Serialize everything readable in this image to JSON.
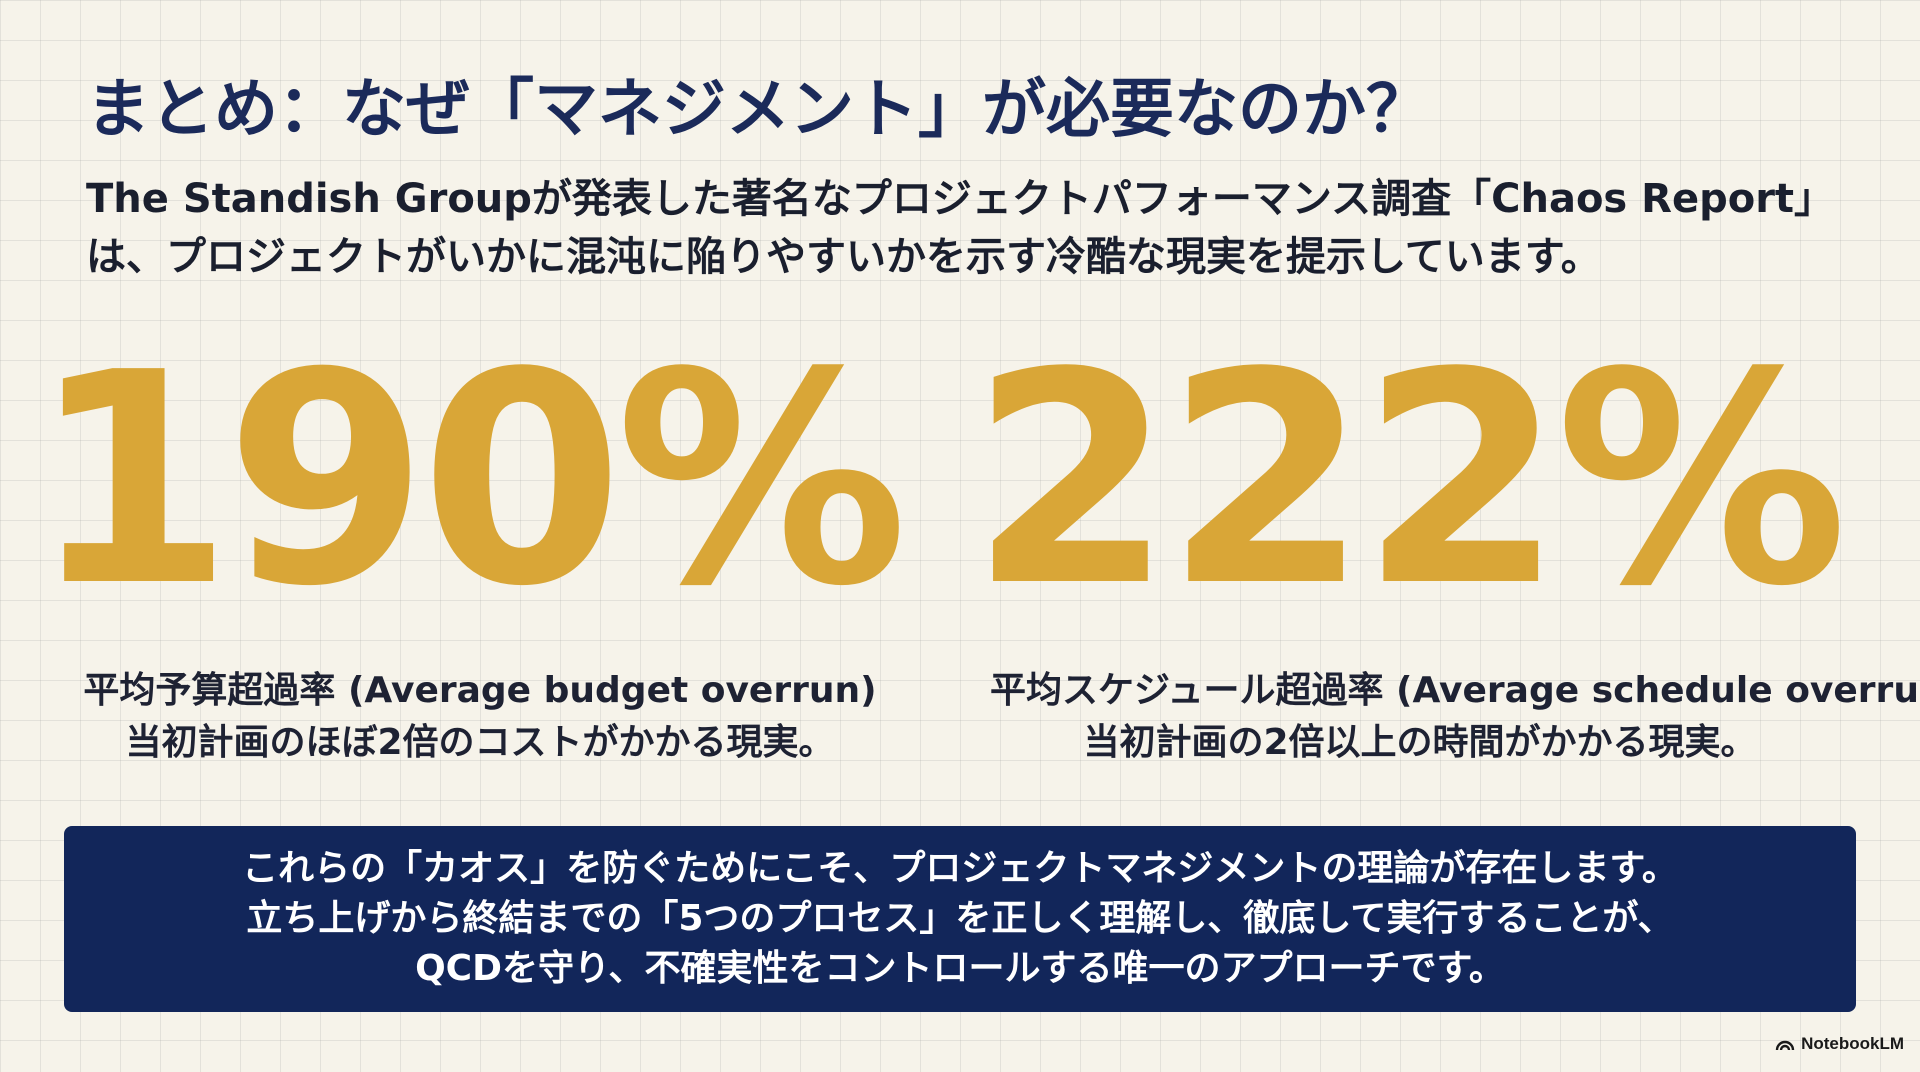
{
  "slide": {
    "title": "まとめ：なぜ「マネジメント」が必要なのか？",
    "intro": "The Standish Groupが発表した著名なプロジェクトパフォーマンス調査「Chaos Report」は、プロジェクトがいかに混沌に陥りやすいかを示す冷酷な現実を提示しています。"
  },
  "stats": [
    {
      "value": "190%",
      "label": "平均予算超過率 (Average budget overrun)",
      "description": "当初計画のほぼ2倍のコストがかかる現実。"
    },
    {
      "value": "222%",
      "label": "平均スケジュール超過率 (Average schedule overrun)",
      "description": "当初計画の2倍以上の時間がかかる現実。"
    }
  ],
  "conclusion": {
    "lines": [
      "これらの「カオス」を防ぐためにこそ、プロジェクトマネジメントの理論が存在します。",
      "立ち上げから終結までの「5つのプロセス」を正しく理解し、徹底して実行することが、",
      "QCDを守り、不確実性をコントロールする唯一のアプローチです。"
    ]
  },
  "watermark": {
    "text": "NotebookLM",
    "icon": "notebooklm-logo-icon"
  },
  "colors": {
    "accent_gold": "#d9a637",
    "navy": "#12265a",
    "title_navy": "#1b2a5a",
    "background": "#f6f3ea"
  }
}
